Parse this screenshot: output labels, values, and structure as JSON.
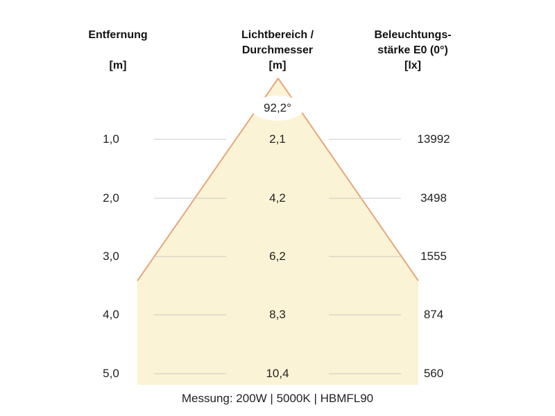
{
  "headers": {
    "distance": {
      "line1": "Entfernung",
      "unit": "[m]"
    },
    "diameter": {
      "line1": "Lichtbereich /",
      "line2": "Durchmesser",
      "unit": "[m]"
    },
    "illuminance": {
      "line1": "Beleuchtungs-",
      "line2": "stärke E0 (0°)",
      "unit": "[lx]"
    }
  },
  "beam_angle": "92,2°",
  "rows": [
    {
      "distance": "1,0",
      "diameter": "2,1",
      "lux": "13992"
    },
    {
      "distance": "2,0",
      "diameter": "4,2",
      "lux": "3498"
    },
    {
      "distance": "3,0",
      "diameter": "6,2",
      "lux": "1555"
    },
    {
      "distance": "4,0",
      "diameter": "8,3",
      "lux": "874"
    },
    {
      "distance": "5,0",
      "diameter": "10,4",
      "lux": "560"
    }
  ],
  "footer": "Messung: 200W | 5000K | HBMFL90",
  "colors": {
    "beam_fill": "#fbf3d5",
    "beam_edge": "#e8a57a",
    "guide_line": "#c8c8c8"
  }
}
